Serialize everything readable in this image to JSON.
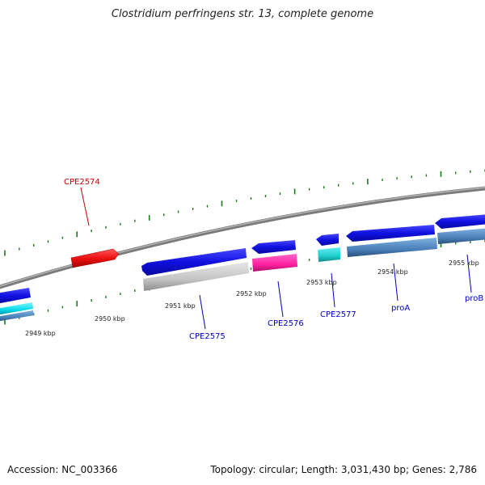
{
  "title": "Clostridium perfringens str. 13, complete genome",
  "footer": {
    "accession": "Accession: NC_003366",
    "summary": "Topology: circular; Length: 3,031,430 bp; Genes: 2,786"
  },
  "colors": {
    "backbone": "#8a8a8a",
    "tick": "#1a7a1a",
    "cds_forward": "#1010e0",
    "highlight": "#ee1111",
    "gene_label": "#0000c0",
    "highlight_label": "#cc0000",
    "scale_text": "#222222"
  },
  "scale_labels": [
    "2949 kbp",
    "2950 kbp",
    "2951 kbp",
    "2952 kbp",
    "2953 kbp",
    "2954 kbp",
    "2955 kbp"
  ],
  "gene_labels": [
    {
      "text": "CPE2574",
      "color": "#cc0000"
    },
    {
      "text": "CPE2575",
      "color": "#0000c0"
    },
    {
      "text": "CPE2576",
      "color": "#0000c0"
    },
    {
      "text": "CPE2577",
      "color": "#0000c0"
    },
    {
      "text": "proA",
      "color": "#0000c0"
    },
    {
      "text": "proB",
      "color": "#0000c0"
    }
  ],
  "feature_colors": [
    "#1010e0",
    "#ee1111",
    "#1010e0",
    "#1010e0",
    "#1010e0",
    "#1010e0",
    "#1010e0",
    "#00d8e8",
    "#4a8abf",
    "#c8c8c8",
    "#ff20a0",
    "#20cccc",
    "#4a80bb",
    "#4a80bb"
  ]
}
